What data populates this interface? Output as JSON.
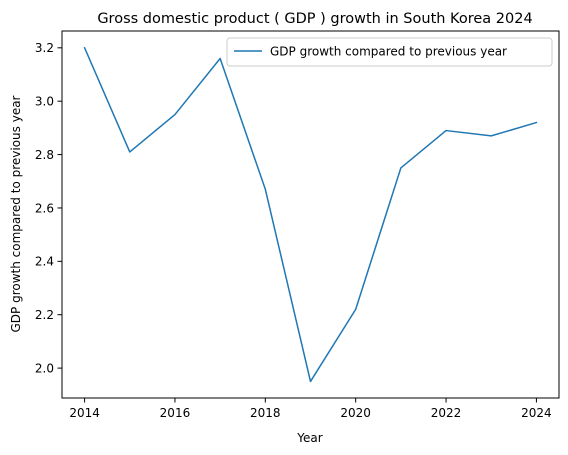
{
  "chart_data": {
    "type": "line",
    "title": "Gross domestic product ( GDP ) growth in South Korea 2024",
    "xlabel": "Year",
    "ylabel": "GDP growth compared to previous year",
    "x": [
      2014,
      2015,
      2016,
      2017,
      2018,
      2019,
      2020,
      2021,
      2022,
      2023,
      2024
    ],
    "series": [
      {
        "name": "GDP growth compared to previous year",
        "values": [
          3.2,
          2.81,
          2.95,
          3.16,
          2.67,
          1.95,
          2.22,
          2.75,
          2.89,
          2.87,
          2.92
        ],
        "color": "#1f77b4"
      }
    ],
    "xlim": [
      2013.5,
      2024.5
    ],
    "ylim": [
      1.888,
      3.263
    ],
    "xticks": [
      2014,
      2016,
      2018,
      2020,
      2022,
      2024
    ],
    "xtick_labels": [
      "2014",
      "2016",
      "2018",
      "2020",
      "2022",
      "2024"
    ],
    "yticks": [
      2.0,
      2.2,
      2.4,
      2.6,
      2.8,
      3.0,
      3.2
    ],
    "ytick_labels": [
      "2.0",
      "2.2",
      "2.4",
      "2.6",
      "2.8",
      "3.0",
      "3.2"
    ],
    "grid": false,
    "legend_position": "upper right"
  }
}
